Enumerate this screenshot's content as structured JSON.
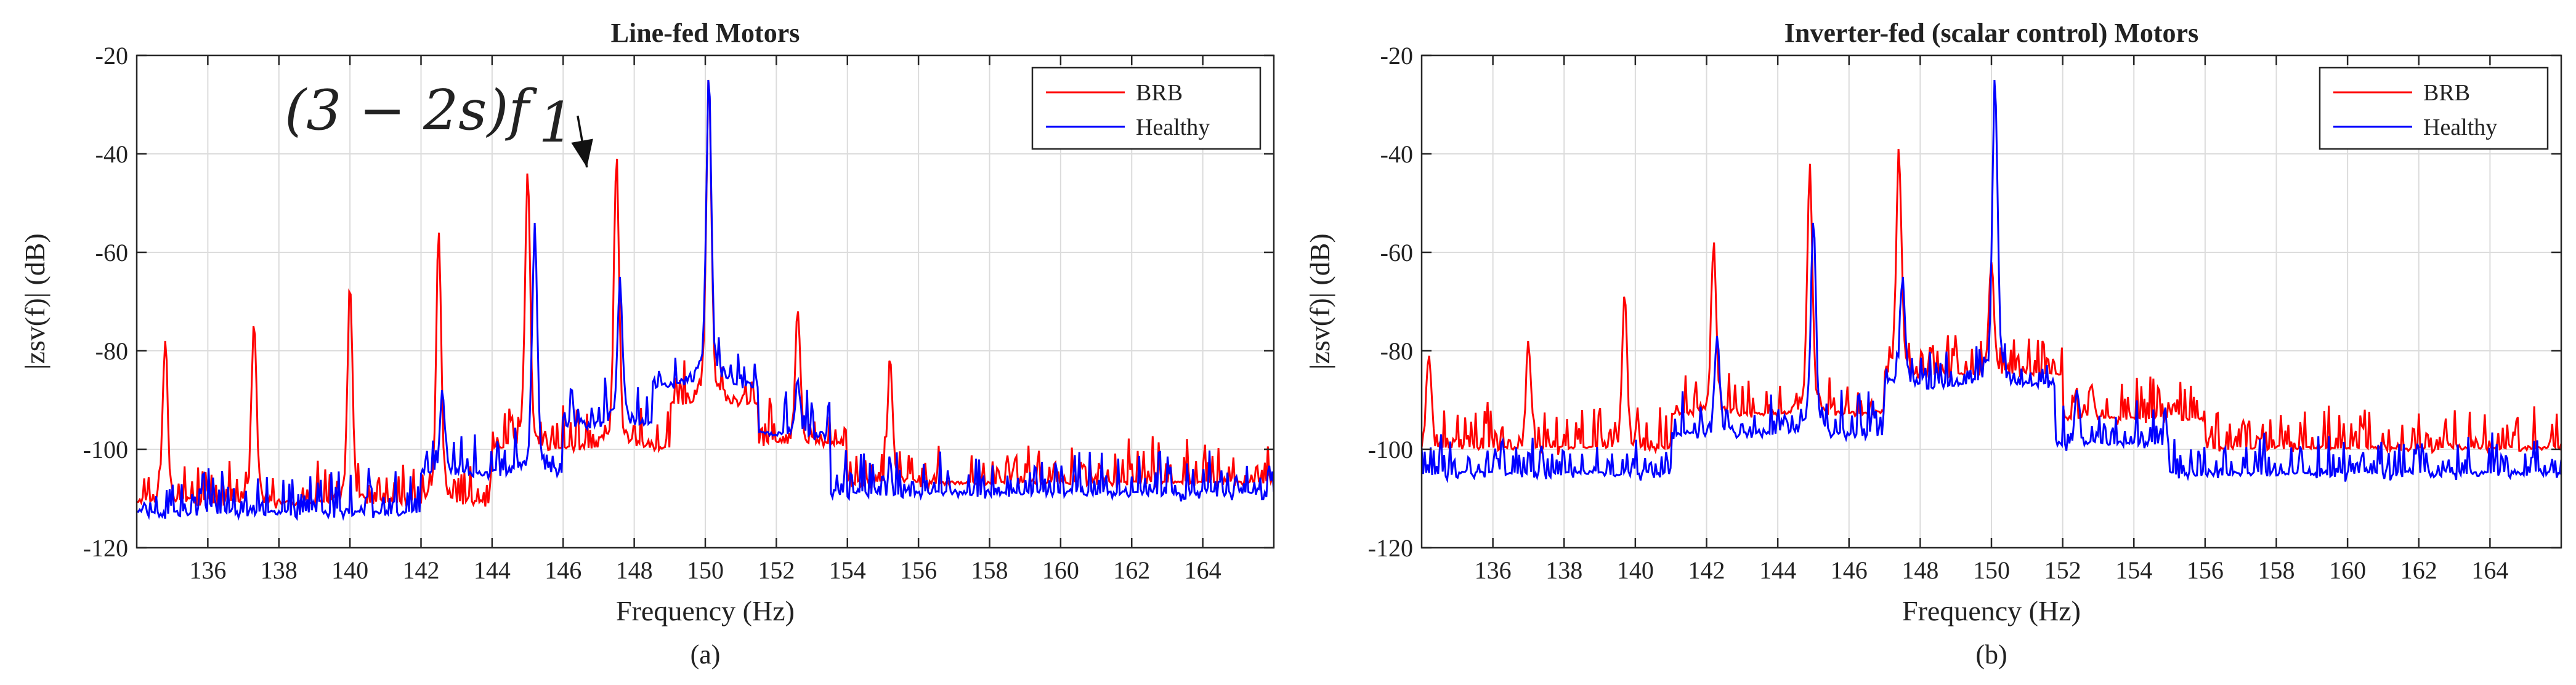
{
  "chart_data": [
    {
      "type": "line",
      "title": "Line-fed Motors",
      "xlabel": "Frequency (Hz)",
      "ylabel": "|zsv(f)| (dB)",
      "sublabel": "(a)",
      "xlim": [
        134,
        166
      ],
      "ylim": [
        -120,
        -20
      ],
      "xticks": [
        136,
        138,
        140,
        142,
        144,
        146,
        148,
        150,
        152,
        154,
        156,
        158,
        160,
        162,
        164
      ],
      "yticks": [
        -20,
        -40,
        -60,
        -80,
        -100,
        -120
      ],
      "legend_position": "top-right",
      "annotation": {
        "text": "(3 − 2s)f",
        "subscript": "1",
        "points_to": [
          147.5,
          -41
        ]
      },
      "series": [
        {
          "name": "BRB",
          "color": "#ff0000",
          "peaks": [
            [
              134.8,
              -78
            ],
            [
              137.3,
              -75
            ],
            [
              140.0,
              -68
            ],
            [
              142.5,
              -56
            ],
            [
              145.0,
              -44
            ],
            [
              147.5,
              -41
            ],
            [
              150.1,
              -25
            ],
            [
              152.6,
              -72
            ],
            [
              155.2,
              -82
            ]
          ]
        },
        {
          "name": "Healthy",
          "color": "#0000ff",
          "peaks": [
            [
              142.6,
              -88
            ],
            [
              145.2,
              -54
            ],
            [
              147.6,
              -65
            ],
            [
              150.1,
              -25
            ],
            [
              152.6,
              -86
            ]
          ]
        }
      ]
    },
    {
      "type": "line",
      "title": "Inverter-fed (scalar control) Motors",
      "xlabel": "Frequency (Hz)",
      "ylabel": "|zsv(f)| (dB)",
      "sublabel": "(b)",
      "xlim": [
        134,
        166
      ],
      "ylim": [
        -120,
        -20
      ],
      "xticks": [
        136,
        138,
        140,
        142,
        144,
        146,
        148,
        150,
        152,
        154,
        156,
        158,
        160,
        162,
        164
      ],
      "yticks": [
        -20,
        -40,
        -60,
        -80,
        -100,
        -120
      ],
      "legend_position": "top-right",
      "series": [
        {
          "name": "BRB",
          "color": "#ff0000",
          "peaks": [
            [
              134.2,
              -81
            ],
            [
              137.0,
              -78
            ],
            [
              139.7,
              -69
            ],
            [
              142.2,
              -58
            ],
            [
              144.9,
              -42
            ],
            [
              147.4,
              -39
            ],
            [
              150.0,
              -62
            ],
            [
              152.8,
              -87
            ],
            [
              155.1,
              -91
            ]
          ]
        },
        {
          "name": "Healthy",
          "color": "#0000ff",
          "peaks": [
            [
              142.3,
              -77
            ],
            [
              145.0,
              -54
            ],
            [
              147.5,
              -65
            ],
            [
              150.1,
              -25
            ],
            [
              152.4,
              -88
            ]
          ]
        }
      ]
    }
  ]
}
